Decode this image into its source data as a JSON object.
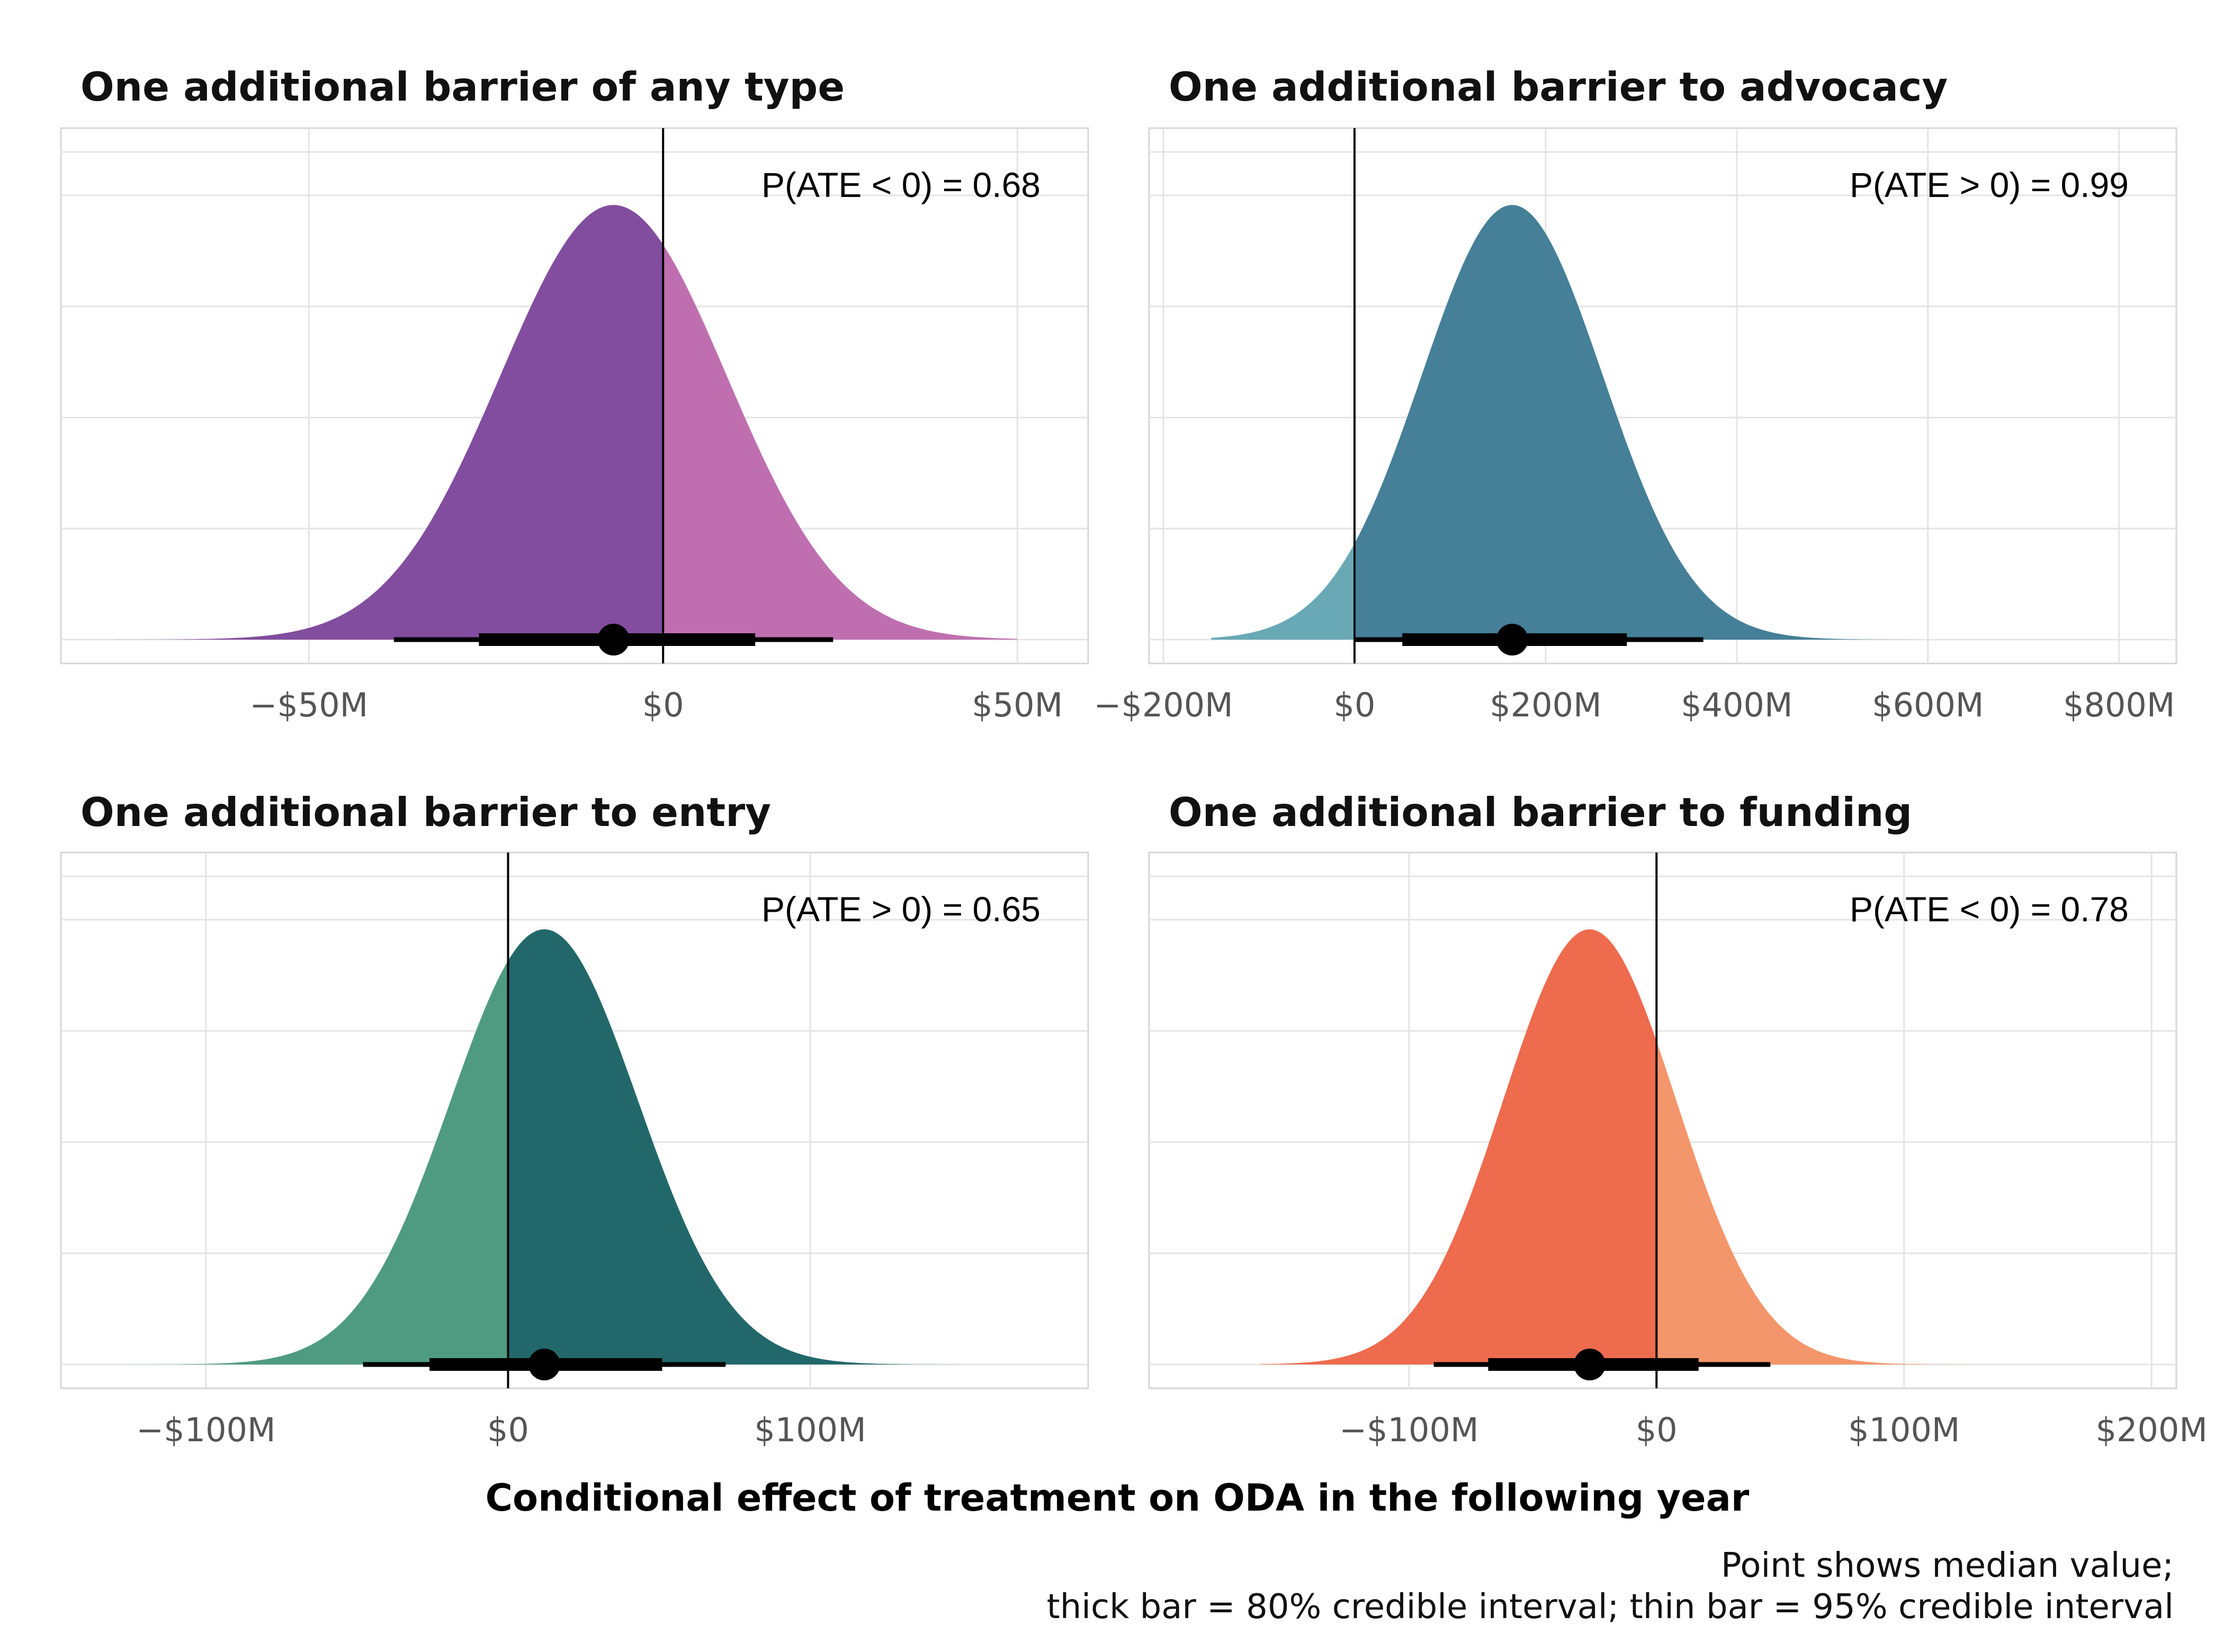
{
  "chart_data": {
    "type": "area",
    "xlabel": "Conditional effect of treatment on ODA in the following year",
    "caption": [
      "Point shows median value;",
      "thick bar = 80% credible interval; thin bar = 95% credible interval"
    ],
    "panels": [
      {
        "title": "One additional barrier of any type",
        "annotation": "P(ATE < 0) = 0.68",
        "xlim": [
          -85,
          60
        ],
        "xticks": [
          -50,
          0,
          50
        ],
        "xtick_labels": [
          "−$50M",
          "$0",
          "$50M"
        ],
        "unit": "million USD",
        "colors": {
          "below_zero": "#824d9e",
          "above_zero": "#bf6fb0"
        },
        "median": -7,
        "interval_80": [
          -26,
          13
        ],
        "interval_95": [
          -38,
          24
        ],
        "density": {
          "mean": -7,
          "sd": 16,
          "range": [
            -80,
            50
          ]
        }
      },
      {
        "title": "One additional barrier to advocacy",
        "annotation": "P(ATE > 0) = 0.99",
        "xlim": [
          -215,
          860
        ],
        "xticks": [
          -200,
          0,
          200,
          400,
          600,
          800
        ],
        "xtick_labels": [
          "−$200M",
          "$0",
          "$200M",
          "$400M",
          "$600M",
          "$800M"
        ],
        "unit": "million USD",
        "colors": {
          "below_zero": "#69a9b5",
          "above_zero": "#457f98"
        },
        "median": 165,
        "interval_80": [
          50,
          285
        ],
        "interval_95": [
          0,
          365
        ],
        "density": {
          "mean": 165,
          "sd": 95,
          "range": [
            -150,
            700
          ]
        }
      },
      {
        "title": "One additional barrier to entry",
        "annotation": "P(ATE > 0) = 0.65",
        "xlim": [
          -148,
          192
        ],
        "xticks": [
          -100,
          0,
          100
        ],
        "xtick_labels": [
          "−$100M",
          "$0",
          "$100M"
        ],
        "unit": "million USD",
        "colors": {
          "below_zero": "#4f9b82",
          "above_zero": "#22686b"
        },
        "median": 12,
        "interval_80": [
          -26,
          51
        ],
        "interval_95": [
          -48,
          72
        ],
        "density": {
          "mean": 12,
          "sd": 31,
          "range": [
            -140,
            170
          ]
        }
      },
      {
        "title": "One additional barrier to funding",
        "annotation": "P(ATE < 0) = 0.78",
        "xlim": [
          -205,
          210
        ],
        "xticks": [
          -100,
          0,
          100,
          200
        ],
        "xtick_labels": [
          "−$100M",
          "$0",
          "$100M",
          "$200M"
        ],
        "unit": "million USD",
        "colors": {
          "below_zero": "#ee6b4e",
          "above_zero": "#f4966b"
        },
        "median": -27,
        "interval_80": [
          -68,
          17
        ],
        "interval_95": [
          -90,
          46
        ],
        "density": {
          "mean": -27,
          "sd": 35,
          "range": [
            -160,
            200
          ]
        }
      }
    ]
  }
}
